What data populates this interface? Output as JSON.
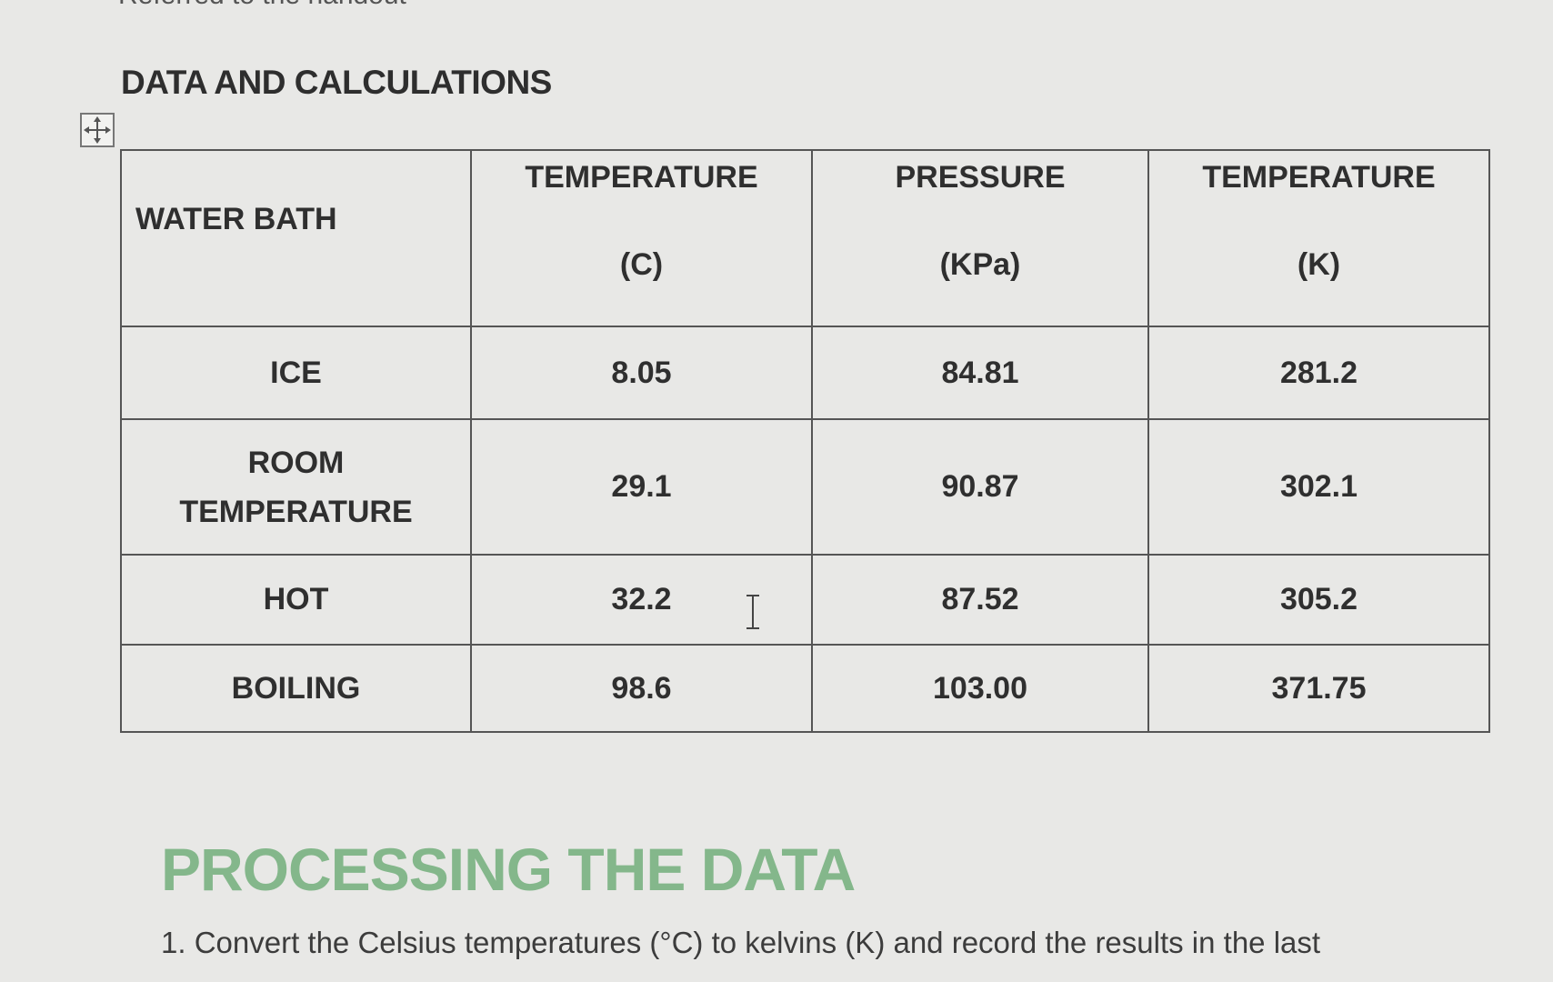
{
  "top_fragment": "Referred to the handout",
  "section_title": "DATA AND CALCULATIONS",
  "table": {
    "headers": [
      {
        "top": "WATER BATH",
        "unit": ""
      },
      {
        "top": "TEMPERATURE",
        "unit": "(C)"
      },
      {
        "top": "PRESSURE",
        "unit": "(KPa)"
      },
      {
        "top": "TEMPERATURE",
        "unit": "(K)"
      }
    ],
    "rows": [
      {
        "bath": "ICE",
        "temp_c": "8.05",
        "pressure": "84.81",
        "temp_k": "281.2"
      },
      {
        "bath_line1": "ROOM",
        "bath_line2": "TEMPERATURE",
        "temp_c": "29.1",
        "pressure": "90.87",
        "temp_k": "302.1"
      },
      {
        "bath": "HOT",
        "temp_c": "32.2",
        "pressure": "87.52",
        "temp_k": "305.2"
      },
      {
        "bath": "BOILING",
        "temp_c": "98.6",
        "pressure": "103.00",
        "temp_k": "371.75"
      }
    ]
  },
  "icons": {
    "move_handle": "move-arrows-icon",
    "cursor": "text-cursor-icon"
  },
  "processing": {
    "title": "PROCESSING THE DATA",
    "instruction": "1. Convert the Celsius temperatures (°C) to kelvins (K) and record the results in the last"
  },
  "colors": {
    "processing_title": "#84b78b"
  }
}
